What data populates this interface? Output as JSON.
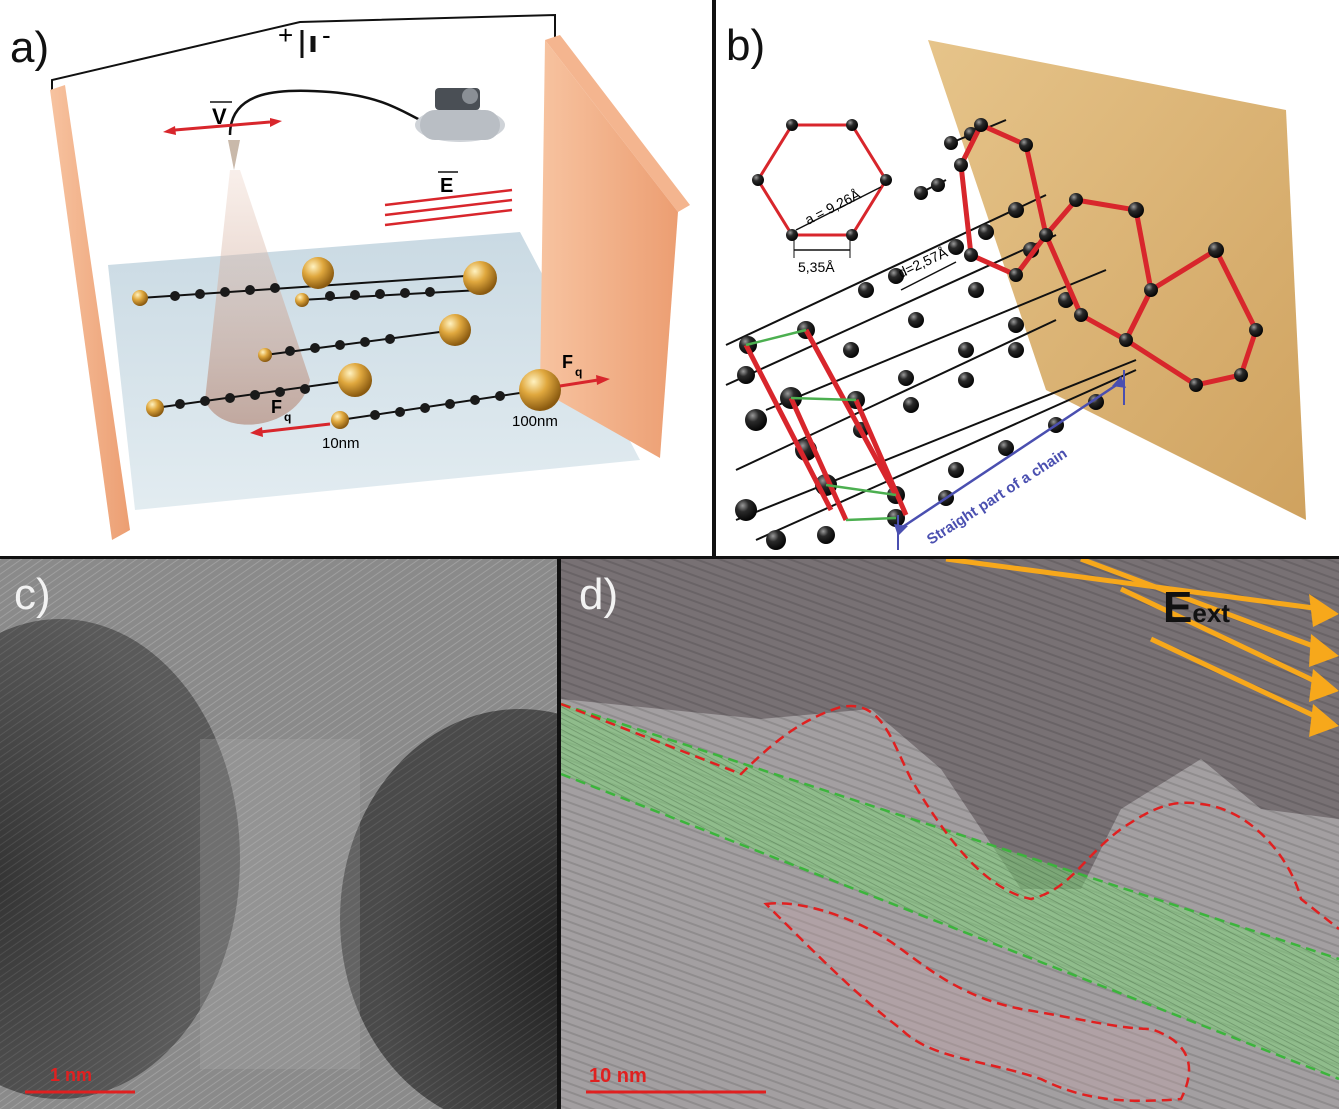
{
  "panel_a": {
    "letter": "a)",
    "plus": "+",
    "minus": "-",
    "velocity": "V",
    "field": "E",
    "force": "F",
    "force_sub": "q",
    "small_label": "10nm",
    "large_label": "100nm"
  },
  "panel_b": {
    "letter": "b)",
    "hex_a": "a = 9,26Å",
    "hex_side": "5,35Å",
    "spacing": "d=2,57Å",
    "straight": "Straight part of a chain"
  },
  "panel_c": {
    "letter": "c)",
    "scale": "1 nm"
  },
  "panel_d": {
    "letter": "d)",
    "scale": "10 nm",
    "field_main": "E",
    "field_sub": "ext"
  },
  "colors": {
    "plate": "#f2b08a",
    "chain_red": "#d8262c",
    "gold": "#d9a441",
    "arrow_orange": "#f7a81b",
    "scale_red": "#e02020",
    "chain_blue": "#4a4fb0",
    "green_band": "#7fd37a"
  }
}
